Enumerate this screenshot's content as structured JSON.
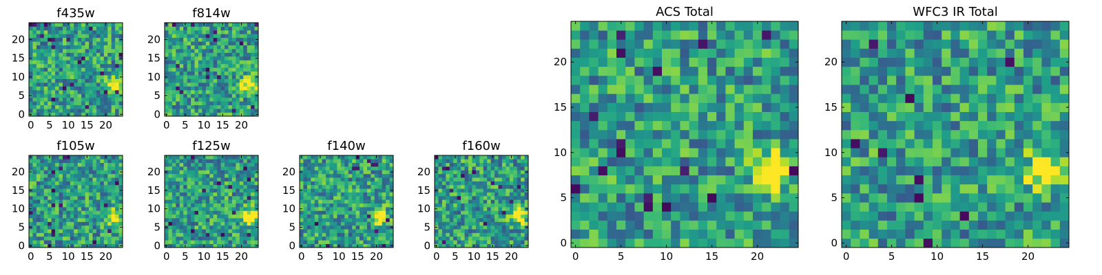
{
  "chart_data": [
    {
      "type": "heatmap",
      "title": "f435w",
      "xticks": [
        0,
        5,
        10,
        15,
        20
      ],
      "yticks": [
        0,
        5,
        10,
        15,
        20
      ],
      "xlim": [
        -0.5,
        24.5
      ],
      "ylim": [
        -0.5,
        24.5
      ],
      "grid_size": 25,
      "bright_spot": {
        "x": 22,
        "y": 8
      }
    },
    {
      "type": "heatmap",
      "title": "f814w",
      "xticks": [
        0,
        5,
        10,
        15,
        20
      ],
      "yticks": [
        0,
        5,
        10,
        15,
        20
      ],
      "xlim": [
        -0.5,
        24.5
      ],
      "ylim": [
        -0.5,
        24.5
      ],
      "grid_size": 25,
      "bright_spot": {
        "x": 22,
        "y": 8
      }
    },
    {
      "type": "heatmap",
      "title": "f105w",
      "xticks": [
        0,
        5,
        10,
        15,
        20
      ],
      "yticks": [
        0,
        5,
        10,
        15,
        20
      ],
      "xlim": [
        -0.5,
        24.5
      ],
      "ylim": [
        -0.5,
        24.5
      ],
      "grid_size": 25,
      "bright_spot": {
        "x": 22,
        "y": 8
      }
    },
    {
      "type": "heatmap",
      "title": "f125w",
      "xticks": [
        0,
        5,
        10,
        15,
        20
      ],
      "yticks": [
        0,
        5,
        10,
        15,
        20
      ],
      "xlim": [
        -0.5,
        24.5
      ],
      "ylim": [
        -0.5,
        24.5
      ],
      "grid_size": 25,
      "bright_spot": {
        "x": 22,
        "y": 8
      }
    },
    {
      "type": "heatmap",
      "title": "f140w",
      "xticks": [
        0,
        5,
        10,
        15,
        20
      ],
      "yticks": [
        0,
        5,
        10,
        15,
        20
      ],
      "xlim": [
        -0.5,
        24.5
      ],
      "ylim": [
        -0.5,
        24.5
      ],
      "grid_size": 25,
      "bright_spot": {
        "x": 21,
        "y": 8
      }
    },
    {
      "type": "heatmap",
      "title": "f160w",
      "xticks": [
        0,
        5,
        10,
        15,
        20
      ],
      "yticks": [
        0,
        5,
        10,
        15,
        20
      ],
      "xlim": [
        -0.5,
        24.5
      ],
      "ylim": [
        -0.5,
        24.5
      ],
      "grid_size": 25,
      "bright_spot": {
        "x": 22,
        "y": 8
      }
    },
    {
      "type": "heatmap",
      "title": "ACS Total",
      "xticks": [
        0,
        5,
        10,
        15,
        20
      ],
      "yticks": [
        0,
        5,
        10,
        15,
        20
      ],
      "xlim": [
        -0.5,
        24.5
      ],
      "ylim": [
        -0.5,
        24.5
      ],
      "grid_size": 25,
      "bright_spot": {
        "x": 22,
        "y": 8
      }
    },
    {
      "type": "heatmap",
      "title": "WFC3 IR Total",
      "xticks": [
        0,
        5,
        10,
        15,
        20
      ],
      "yticks": [
        0,
        5,
        10,
        15,
        20
      ],
      "xlim": [
        -0.5,
        24.5
      ],
      "ylim": [
        -0.5,
        24.5
      ],
      "grid_size": 25,
      "bright_spot": {
        "x": 22,
        "y": 8
      }
    }
  ],
  "colors": {
    "colormap": "viridis",
    "low": "#440154",
    "mid": "#21918c",
    "high": "#fde725"
  }
}
